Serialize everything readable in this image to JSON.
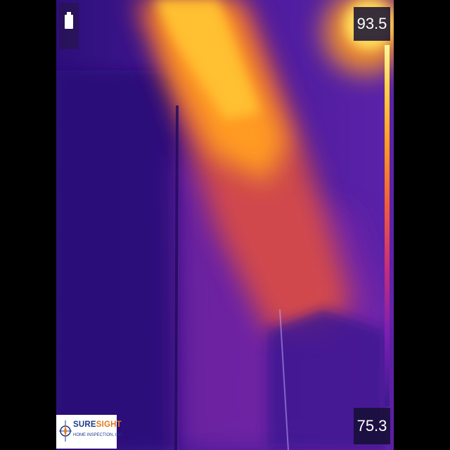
{
  "status": {
    "battery_icon": "battery-icon"
  },
  "temperature": {
    "max": "93.5",
    "min": "75.3"
  },
  "palette": {
    "cold": "#3d1a8f",
    "mid": "#c62d7a",
    "warm": "#ff9a20",
    "hot": "#fff7a0"
  },
  "logo": {
    "name_part1": "SURE",
    "name_part2": "SIGHT",
    "subtitle": "HOME INSPECTION, INC"
  }
}
